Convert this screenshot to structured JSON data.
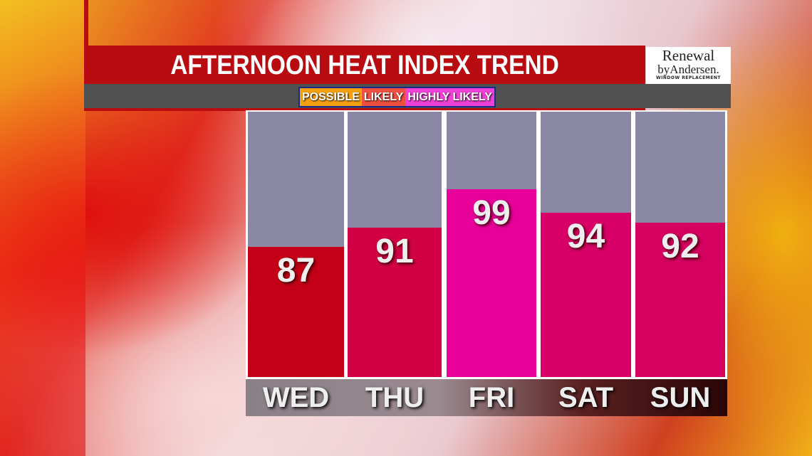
{
  "header": {
    "title": "AFTERNOON HEAT INDEX TREND"
  },
  "legend": [
    {
      "label": "POSSIBLE",
      "color": "#f5a010"
    },
    {
      "label": "LIKELY",
      "color": "#f05040"
    },
    {
      "label": "HIGHLY LIKELY",
      "color": "#f040d8"
    }
  ],
  "sponsor": {
    "line1": "Renewal",
    "line2": "byAndersen.",
    "line3": "WINDOW REPLACEMENT"
  },
  "chart_data": {
    "type": "bar",
    "title": "AFTERNOON HEAT INDEX TREND",
    "categories": [
      "WED",
      "THU",
      "FRI",
      "SAT",
      "SUN"
    ],
    "values": [
      87,
      91,
      99,
      94,
      92
    ],
    "colors": [
      "#c40018",
      "#d20044",
      "#e8009a",
      "#d80066",
      "#d60060"
    ],
    "ylim": [
      60,
      115
    ],
    "grid": false
  }
}
